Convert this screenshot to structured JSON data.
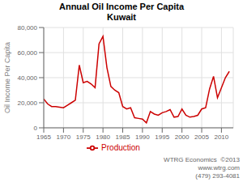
{
  "chart_data": {
    "type": "line",
    "title": "Annual Oil Income Per Capita",
    "subtitle": "Kuwait",
    "y_label": "Oil Income Per Capita",
    "annotations": [
      "WTRG Economics  ©2013",
      "www.wtrg.com",
      "(479) 293-4081"
    ],
    "x": [
      1965,
      1966,
      1967,
      1968,
      1969,
      1970,
      1971,
      1972,
      1973,
      1974,
      1975,
      1976,
      1977,
      1978,
      1979,
      1980,
      1981,
      1982,
      1983,
      1984,
      1985,
      1986,
      1987,
      1988,
      1989,
      1990,
      1991,
      1992,
      1993,
      1994,
      1995,
      1996,
      1997,
      1998,
      1999,
      2000,
      2001,
      2002,
      2003,
      2004,
      2005,
      2006,
      2007,
      2008,
      2009,
      2010,
      2011,
      2012
    ],
    "series": [
      {
        "name": "Production",
        "color": "#cc0000",
        "values": [
          23000,
          19000,
          17000,
          17000,
          16500,
          16000,
          18000,
          20000,
          22000,
          50000,
          36000,
          37000,
          35000,
          32000,
          67000,
          73000,
          48000,
          33000,
          30000,
          28000,
          17000,
          15000,
          16000,
          8000,
          7500,
          7000,
          4000,
          13000,
          11000,
          10000,
          12000,
          13000,
          14500,
          8500,
          9000,
          15000,
          10000,
          8500,
          9000,
          10000,
          15000,
          16000,
          31000,
          41000,
          24000,
          32000,
          40000,
          45000
        ]
      }
    ],
    "xlim": [
      1965,
      2013
    ],
    "xticks": [
      1965,
      1970,
      1975,
      1980,
      1985,
      1990,
      1995,
      2000,
      2005,
      2010
    ],
    "ylim": [
      0,
      80000
    ],
    "yticks": [
      0,
      {
        "value": 20000,
        "label": "20,000"
      },
      {
        "value": 40000,
        "label": "40,000"
      },
      {
        "value": 60000,
        "label": "60,000"
      },
      {
        "value": 80000,
        "label": "80,000"
      }
    ],
    "grid": true,
    "legend": "bottom"
  }
}
